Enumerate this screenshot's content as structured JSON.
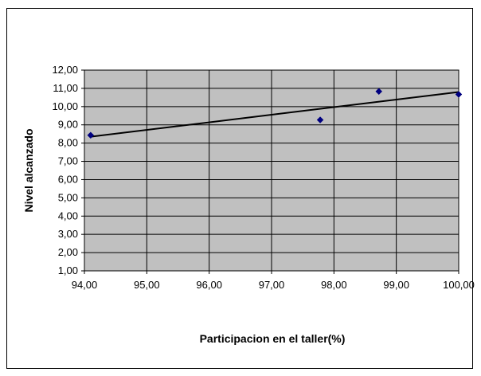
{
  "chart_data": {
    "type": "scatter",
    "title": "",
    "xlabel": "Participacion en el taller(%)",
    "ylabel": "Nivel alcanzado",
    "xlim": [
      94,
      100
    ],
    "ylim": [
      1,
      12
    ],
    "x_ticks": [
      "94,00",
      "95,00",
      "96,00",
      "97,00",
      "98,00",
      "99,00",
      "100,00"
    ],
    "y_ticks": [
      "1,00",
      "2,00",
      "3,00",
      "4,00",
      "5,00",
      "6,00",
      "7,00",
      "8,00",
      "9,00",
      "10,00",
      "11,00",
      "12,00"
    ],
    "grid": true,
    "legend": "none",
    "plot_background": "#c0c0c0",
    "marker_color": "#000080",
    "series": [
      {
        "points": [
          {
            "x": 94.1,
            "y": 8.43
          },
          {
            "x": 97.78,
            "y": 9.27
          },
          {
            "x": 98.72,
            "y": 10.83
          },
          {
            "x": 100.0,
            "y": 10.67
          }
        ]
      }
    ],
    "trendline": {
      "type": "linear",
      "x": [
        94.1,
        100.0
      ],
      "y": [
        8.35,
        10.8
      ]
    }
  }
}
